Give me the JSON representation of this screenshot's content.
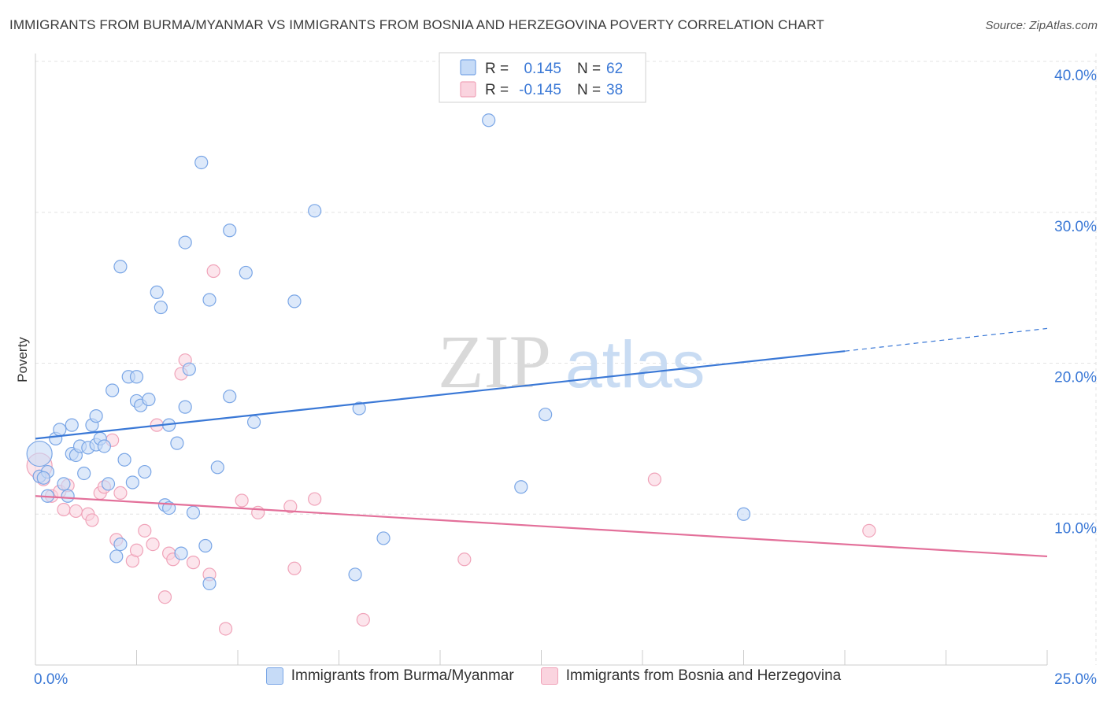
{
  "title": "IMMIGRANTS FROM BURMA/MYANMAR VS IMMIGRANTS FROM BOSNIA AND HERZEGOVINA POVERTY CORRELATION CHART",
  "source": "Source: ZipAtlas.com",
  "watermark": {
    "zip": "ZIP",
    "atlas": "atlas"
  },
  "colors": {
    "blue": "#3a78d6",
    "blue_fill": "#c6dbf7",
    "blue_stroke": "#7aa6e6",
    "pink": "#e3709a",
    "pink_fill": "#fad4df",
    "pink_stroke": "#f0a3b9",
    "tick_text": "#3a78d6"
  },
  "stats_legend": [
    {
      "r_label": "R =",
      "r_value": "0.145",
      "n_label": "N =",
      "n_value": "62"
    },
    {
      "r_label": "R =",
      "r_value": "-0.145",
      "n_label": "N =",
      "n_value": "38"
    }
  ],
  "legend": [
    "Immigrants from Burma/Myanmar",
    "Immigrants from Bosnia and Herzegovina"
  ],
  "chart_data": {
    "type": "scatter",
    "title": "IMMIGRANTS FROM BURMA/MYANMAR VS IMMIGRANTS FROM BOSNIA AND HERZEGOVINA POVERTY CORRELATION CHART",
    "xlabel": "",
    "ylabel": "Poverty",
    "xlim": [
      0,
      25
    ],
    "ylim": [
      0,
      40
    ],
    "x_tick_labels": [
      "0.0%",
      "25.0%"
    ],
    "y_ticks": [
      10,
      20,
      30,
      40
    ],
    "y_tick_labels": [
      "10.0%",
      "20.0%",
      "30.0%",
      "40.0%"
    ],
    "grid": true,
    "legend_position": "bottom-center",
    "series": [
      {
        "name": "Immigrants from Burma/Myanmar",
        "r": 0.145,
        "n": 62,
        "trend": {
          "x0": 0,
          "y0": 15.0,
          "x1": 20,
          "y1": 20.8,
          "dash_to_x": 25,
          "dash_to_y": 22.3
        },
        "points": [
          [
            0.1,
            12.5
          ],
          [
            0.3,
            12.8
          ],
          [
            0.3,
            11.2
          ],
          [
            0.5,
            15.0
          ],
          [
            0.6,
            15.6
          ],
          [
            0.7,
            12.0
          ],
          [
            0.8,
            11.2
          ],
          [
            0.9,
            15.9
          ],
          [
            0.9,
            14.0
          ],
          [
            1.0,
            13.9
          ],
          [
            1.1,
            14.5
          ],
          [
            1.2,
            12.7
          ],
          [
            1.3,
            14.4
          ],
          [
            1.4,
            15.9
          ],
          [
            1.5,
            14.6
          ],
          [
            1.5,
            16.5
          ],
          [
            1.6,
            15.0
          ],
          [
            1.7,
            14.5
          ],
          [
            1.8,
            12.0
          ],
          [
            1.9,
            18.2
          ],
          [
            2.0,
            7.2
          ],
          [
            2.1,
            8.0
          ],
          [
            2.1,
            26.4
          ],
          [
            2.2,
            13.6
          ],
          [
            2.3,
            19.1
          ],
          [
            2.4,
            12.1
          ],
          [
            2.5,
            17.5
          ],
          [
            2.5,
            19.1
          ],
          [
            2.6,
            17.2
          ],
          [
            2.7,
            12.8
          ],
          [
            2.8,
            17.6
          ],
          [
            3.0,
            24.7
          ],
          [
            3.1,
            23.7
          ],
          [
            3.2,
            10.6
          ],
          [
            3.3,
            10.4
          ],
          [
            3.3,
            15.9
          ],
          [
            3.5,
            14.7
          ],
          [
            3.6,
            7.4
          ],
          [
            3.7,
            17.1
          ],
          [
            3.7,
            28.0
          ],
          [
            3.8,
            19.6
          ],
          [
            3.9,
            10.1
          ],
          [
            4.1,
            33.3
          ],
          [
            4.2,
            7.9
          ],
          [
            4.3,
            24.2
          ],
          [
            4.3,
            5.4
          ],
          [
            4.5,
            13.1
          ],
          [
            4.8,
            28.8
          ],
          [
            4.8,
            17.8
          ],
          [
            5.2,
            26.0
          ],
          [
            5.4,
            16.1
          ],
          [
            6.4,
            24.1
          ],
          [
            6.9,
            30.1
          ],
          [
            7.9,
            6.0
          ],
          [
            8.0,
            17.0
          ],
          [
            8.6,
            8.4
          ],
          [
            11.2,
            36.1
          ],
          [
            12.0,
            11.8
          ],
          [
            12.6,
            16.6
          ],
          [
            17.5,
            10.0
          ],
          [
            0.1,
            14.0
          ],
          [
            0.2,
            12.4
          ]
        ]
      },
      {
        "name": "Immigrants from Bosnia and Herzegovina",
        "r": -0.145,
        "n": 38,
        "trend": {
          "x0": 0,
          "y0": 11.2,
          "x1": 25,
          "y1": 7.2
        },
        "points": [
          [
            0.1,
            13.2
          ],
          [
            0.2,
            12.3
          ],
          [
            0.4,
            11.2
          ],
          [
            0.6,
            11.5
          ],
          [
            0.7,
            10.3
          ],
          [
            0.8,
            11.9
          ],
          [
            1.0,
            10.2
          ],
          [
            1.3,
            10.0
          ],
          [
            1.4,
            9.6
          ],
          [
            1.6,
            11.4
          ],
          [
            1.7,
            11.8
          ],
          [
            1.9,
            14.9
          ],
          [
            2.0,
            8.3
          ],
          [
            2.1,
            11.4
          ],
          [
            2.4,
            6.9
          ],
          [
            2.5,
            7.6
          ],
          [
            2.7,
            8.9
          ],
          [
            2.9,
            8.0
          ],
          [
            3.0,
            15.9
          ],
          [
            3.2,
            4.5
          ],
          [
            3.3,
            7.4
          ],
          [
            3.4,
            7.0
          ],
          [
            3.6,
            19.3
          ],
          [
            3.7,
            20.2
          ],
          [
            3.9,
            6.8
          ],
          [
            4.3,
            6.0
          ],
          [
            4.4,
            26.1
          ],
          [
            4.7,
            2.4
          ],
          [
            5.1,
            10.9
          ],
          [
            5.5,
            10.1
          ],
          [
            6.3,
            10.5
          ],
          [
            6.4,
            6.4
          ],
          [
            6.9,
            11.0
          ],
          [
            8.1,
            3.0
          ],
          [
            10.6,
            7.0
          ],
          [
            15.3,
            12.3
          ],
          [
            20.6,
            8.9
          ],
          [
            0.1,
            12.5
          ]
        ]
      }
    ]
  }
}
